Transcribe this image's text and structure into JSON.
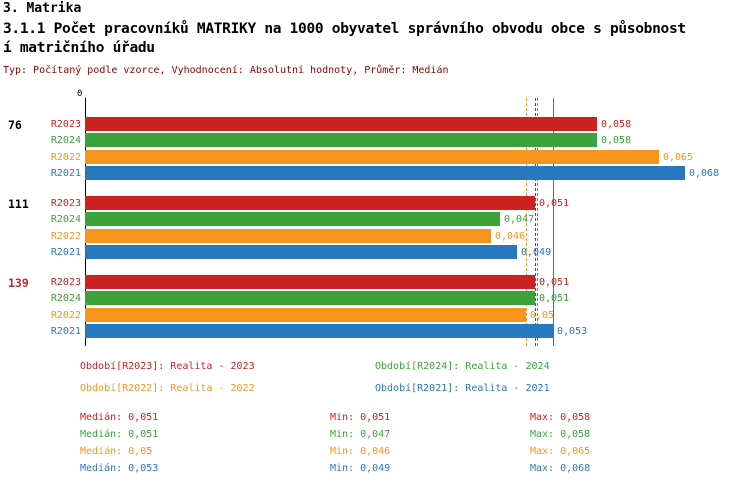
{
  "header": {
    "title": "3. Matrika",
    "subtitle_line1": "3.1.1 Počet pracovníků MATRIKY na 1000 obyvatel správního obvodu obce s působnost",
    "subtitle_line2": "í matričního úřadu",
    "meta": "Typ: Počítaný podle vzorce, Vyhodnocení: Absolutní hodnoty, Průměr: Medián"
  },
  "chart_data": {
    "type": "bar",
    "orientation": "horizontal",
    "title": "3.1.1 Počet pracovníků MATRIKY na 1000 obyvatel správního obvodu obce s působností matričního úřadu",
    "xlim": [
      0,
      0.068
    ],
    "x_origin_tick": "0",
    "average_type": "Medián",
    "series": [
      {
        "id": "R2023",
        "name": "Realita - 2023",
        "color": "#CC2222",
        "median": 0.051,
        "line_style": "dashed"
      },
      {
        "id": "R2024",
        "name": "Realita - 2024",
        "color": "#3AA33A",
        "median": 0.051,
        "line_style": "dashed"
      },
      {
        "id": "R2022",
        "name": "Realita - 2022",
        "color": "#F7941D",
        "median": 0.05,
        "line_style": "dashed"
      },
      {
        "id": "R2021",
        "name": "Realita - 2021",
        "color": "#2878BE",
        "median": 0.053,
        "line_style": "solid"
      }
    ],
    "groups": [
      {
        "label": "76",
        "label_color": "#000000",
        "values": [
          0.058,
          0.058,
          0.065,
          0.068
        ],
        "value_labels": [
          "0,058",
          "0,058",
          "0,065",
          "0,068"
        ]
      },
      {
        "label": "111",
        "label_color": "#000000",
        "values": [
          0.051,
          0.047,
          0.046,
          0.049
        ],
        "value_labels": [
          "0,051",
          "0,047",
          "0,046",
          "0,049"
        ]
      },
      {
        "label": "139",
        "label_color": "#CC2222",
        "values": [
          0.051,
          0.051,
          0.05,
          0.053
        ],
        "value_labels": [
          "0,051",
          "0,051",
          "0,05",
          "0,053"
        ]
      }
    ]
  },
  "legend": {
    "items": [
      {
        "series": "R2023",
        "label": "Období[R2023]: Realita - 2023"
      },
      {
        "series": "R2024",
        "label": "Období[R2024]: Realita - 2024"
      },
      {
        "series": "R2022",
        "label": "Období[R2022]: Realita - 2022"
      },
      {
        "series": "R2021",
        "label": "Období[R2021]: Realita - 2021"
      }
    ]
  },
  "stats": {
    "rows": [
      {
        "series": "R2023",
        "median": "Medián: 0,051",
        "min": "Min: 0,051",
        "max": "Max: 0,058"
      },
      {
        "series": "R2024",
        "median": "Medián: 0,051",
        "min": "Min: 0,047",
        "max": "Max: 0,058"
      },
      {
        "series": "R2022",
        "median": "Medián: 0,05",
        "min": "Min: 0,046",
        "max": "Max: 0,065"
      },
      {
        "series": "R2021",
        "median": "Medián: 0,053",
        "min": "Min: 0,049",
        "max": "Max: 0,068"
      }
    ]
  }
}
